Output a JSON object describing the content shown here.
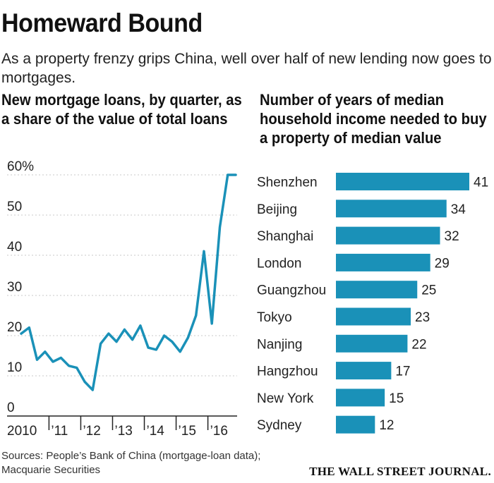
{
  "title": "Homeward Bound",
  "subtitle": "As a property frenzy grips China, well over half of new lending now goes to mortgages.",
  "source": "Sources: People’s Bank of China (mortgage-loan data); Macquarie Securities",
  "publisher": "THE WALL STREET JOURNAL.",
  "colors": {
    "series": "#1a91b8",
    "gridline": "#c8c8c8",
    "axis": "#222222"
  },
  "chart_data": [
    {
      "type": "line",
      "title": "New mortgage loans, by quarter, as a share of the value of total loans",
      "ylim": [
        0,
        60
      ],
      "y_ticks": [
        0,
        10,
        20,
        30,
        40,
        50,
        60
      ],
      "y_tick_labels": [
        "0",
        "10",
        "20",
        "30",
        "40",
        "50",
        "60%"
      ],
      "x_tick_labels": [
        "2010",
        "’11",
        "’12",
        "’13",
        "’14",
        "’15",
        "’16"
      ],
      "grid": true,
      "series": [
        {
          "x": [
            "2010 Q1",
            "2010 Q2",
            "2010 Q3",
            "2010 Q4",
            "2011 Q1",
            "2011 Q2",
            "2011 Q3",
            "2011 Q4",
            "2012 Q1",
            "2012 Q2",
            "2012 Q3",
            "2012 Q4",
            "2013 Q1",
            "2013 Q2",
            "2013 Q3",
            "2013 Q4",
            "2014 Q1",
            "2014 Q2",
            "2014 Q3",
            "2014 Q4",
            "2015 Q1",
            "2015 Q2",
            "2015 Q3",
            "2015 Q4",
            "2016 Q1",
            "2016 Q2",
            "2016 Q3",
            "2016 Q4"
          ],
          "values": [
            20.5,
            22,
            14,
            16,
            13.5,
            14.5,
            12.5,
            12,
            8.5,
            6.5,
            18,
            20.5,
            18.5,
            21.5,
            19,
            22.5,
            17,
            16.5,
            20,
            18.5,
            16,
            19.5,
            25,
            41,
            23,
            47,
            60,
            60
          ]
        }
      ]
    },
    {
      "type": "bar",
      "title": "Number of years of median household income needed to buy a property of median value",
      "categories": [
        "Shenzhen",
        "Beijing",
        "Shanghai",
        "London",
        "Guangzhou",
        "Tokyo",
        "Nanjing",
        "Hangzhou",
        "New York",
        "Sydney"
      ],
      "values": [
        41,
        34,
        32,
        29,
        25,
        23,
        22,
        17,
        15,
        12
      ],
      "xlim": [
        0,
        41
      ]
    }
  ]
}
